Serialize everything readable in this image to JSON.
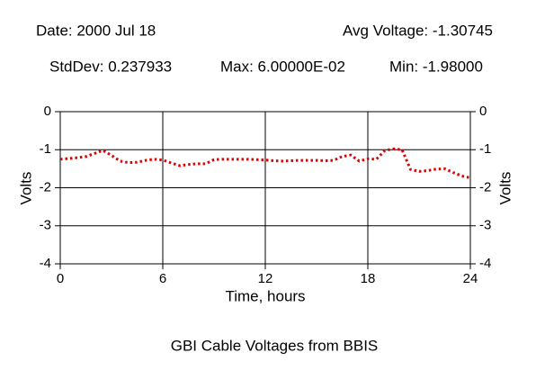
{
  "chart_data": {
    "type": "line",
    "title": "GBI Cable Voltages from BBIS",
    "annotations": [
      "Date: 2000 Jul 18",
      "Avg Voltage: -1.30745",
      "StdDev: 0.237933",
      "Max: 6.00000E-02",
      "Min: -1.98000"
    ],
    "xlabel": "Time, hours",
    "ylabel": "Volts",
    "y2label": "Volts",
    "xlim": [
      0,
      24
    ],
    "xticks": [
      0,
      6,
      12,
      18,
      24
    ],
    "ylim": [
      -4,
      0
    ],
    "yticks": [
      0,
      -1,
      -2,
      -3,
      -4
    ],
    "y2lim": [
      -4,
      0
    ],
    "y2ticks": [
      0,
      -1,
      -2,
      -3,
      -4
    ],
    "grid": true,
    "x": [
      0,
      0.5,
      1,
      1.5,
      2,
      2.5,
      3,
      3.5,
      4,
      4.5,
      5,
      5.5,
      6,
      6.5,
      7,
      7.5,
      8,
      8.5,
      9,
      9.5,
      10,
      10.5,
      11,
      11.5,
      12,
      12.5,
      13,
      13.5,
      14,
      14.5,
      15,
      15.5,
      16,
      16.5,
      17,
      17.5,
      18,
      18.5,
      19,
      19.5,
      20,
      20.5,
      21,
      21.5,
      22,
      22.5,
      23,
      23.5,
      24
    ],
    "series": [
      {
        "color": "#e00000",
        "values": [
          -1.25,
          -1.23,
          -1.21,
          -1.18,
          -1.1,
          -1.02,
          -1.15,
          -1.3,
          -1.34,
          -1.33,
          -1.28,
          -1.25,
          -1.27,
          -1.35,
          -1.42,
          -1.39,
          -1.37,
          -1.37,
          -1.26,
          -1.25,
          -1.25,
          -1.25,
          -1.25,
          -1.26,
          -1.27,
          -1.29,
          -1.3,
          -1.29,
          -1.28,
          -1.28,
          -1.28,
          -1.29,
          -1.28,
          -1.18,
          -1.14,
          -1.3,
          -1.24,
          -1.25,
          -1.02,
          -0.98,
          -1.0,
          -1.52,
          -1.57,
          -1.55,
          -1.51,
          -1.5,
          -1.6,
          -1.69,
          -1.74
        ]
      }
    ]
  }
}
